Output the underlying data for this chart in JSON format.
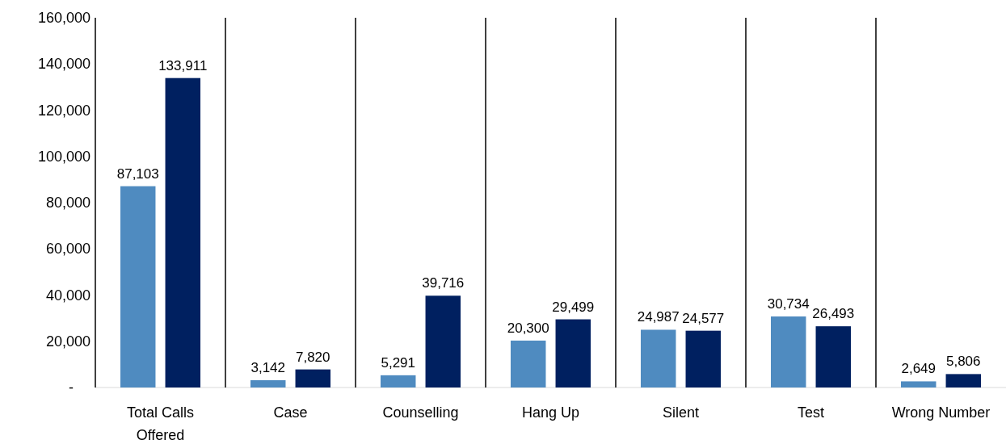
{
  "chart_data": {
    "type": "bar",
    "categories": [
      "Total Calls Offered",
      "Case",
      "Counselling",
      "Hang Up",
      "Silent",
      "Test",
      "Wrong Number"
    ],
    "series": [
      {
        "color": "#4f8bc0",
        "values": [
          87103,
          3142,
          5291,
          20300,
          24987,
          30734,
          2649
        ],
        "value_labels": [
          "87,103",
          "3,142",
          "5,291",
          "20,300",
          "24,987",
          "30,734",
          "2,649"
        ]
      },
      {
        "color": "#002060",
        "values": [
          133911,
          7820,
          39716,
          29499,
          24577,
          26493,
          5806
        ],
        "value_labels": [
          "133,911",
          "7,820",
          "39,716",
          "29,499",
          "24,577",
          "26,493",
          "5,806"
        ]
      }
    ],
    "ylim": [
      0,
      160000
    ],
    "yticks": [
      {
        "value": 0,
        "label": "-"
      },
      {
        "value": 20000,
        "label": "20,000"
      },
      {
        "value": 40000,
        "label": "40,000"
      },
      {
        "value": 60000,
        "label": "60,000"
      },
      {
        "value": 80000,
        "label": "80,000"
      },
      {
        "value": 100000,
        "label": "100,000"
      },
      {
        "value": 120000,
        "label": "120,000"
      },
      {
        "value": 140000,
        "label": "140,000"
      },
      {
        "value": 160000,
        "label": "160,000"
      }
    ],
    "grid": "x"
  }
}
